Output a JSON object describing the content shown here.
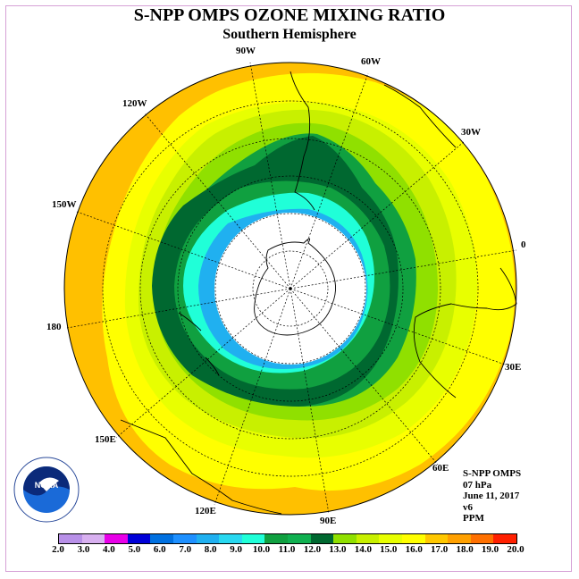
{
  "title": "S-NPP OMPS OZONE MIXING RATIO",
  "subtitle": "Southern Hemisphere",
  "longitude_labels": [
    "90W",
    "60W",
    "30W",
    "0",
    "30E",
    "60E",
    "90E",
    "120E",
    "150E",
    "180",
    "150W",
    "120W"
  ],
  "info": {
    "instrument": "S-NPP OMPS",
    "level": "07 hPa",
    "date": "June 11, 2017",
    "version": "v6",
    "units": "PPM"
  },
  "logo_text": "NOAA",
  "colorbar": {
    "ticks": [
      "2.0",
      "3.0",
      "4.0",
      "5.0",
      "6.0",
      "7.0",
      "8.0",
      "9.0",
      "10.0",
      "11.0",
      "12.0",
      "13.0",
      "14.0",
      "15.0",
      "16.0",
      "17.0",
      "18.0",
      "19.0",
      "20.0"
    ],
    "colors": [
      "#b890e8",
      "#d8b0f0",
      "#e800e8",
      "#0000d8",
      "#0070e0",
      "#1e90ff",
      "#20b0f0",
      "#28d8f0",
      "#20ffd8",
      "#10a040",
      "#10b050",
      "#006830",
      "#90e000",
      "#c8f000",
      "#e8ff00",
      "#ffff00",
      "#ffc800",
      "#ffa000",
      "#ff7000",
      "#ff2000"
    ]
  },
  "map_colors": {
    "outer_orange": "#ffc000",
    "yellow": "#ffff00",
    "light_yellow": "#e8ff00",
    "yellow_green": "#c8f000",
    "green": "#90e000",
    "dark_green_1": "#10a040",
    "dark_green_2": "#006830",
    "cyan": "#20ffd8",
    "sky_blue": "#20b0f0",
    "no_data": "#ffffff"
  }
}
